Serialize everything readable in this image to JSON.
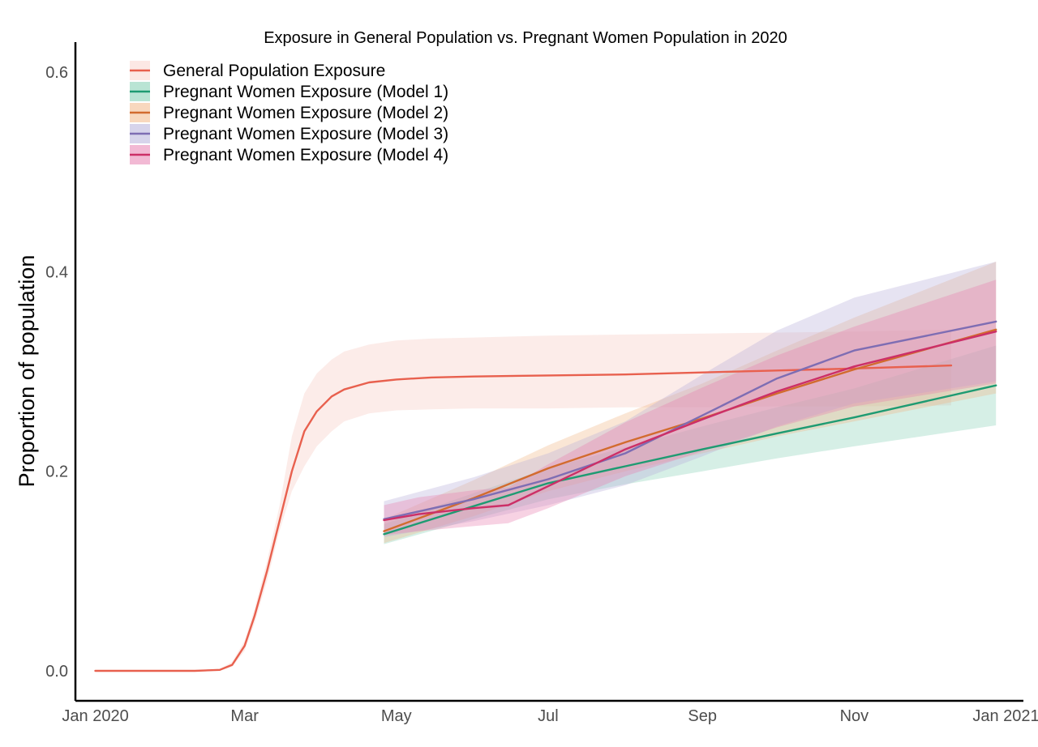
{
  "chart_data": {
    "type": "line",
    "title": "Exposure in General  Population vs. Pregnant Women Population in 2020",
    "xlabel": "",
    "ylabel": "Proportion of population",
    "ylim": [
      0,
      0.62
    ],
    "xlim": [
      "2019-12-24",
      "2021-01-08"
    ],
    "x_ticks": [
      {
        "date": "2020-01-01",
        "label": "Jan 2020"
      },
      {
        "date": "2020-03-01",
        "label": "Mar"
      },
      {
        "date": "2020-05-01",
        "label": "May"
      },
      {
        "date": "2020-07-01",
        "label": "Jul"
      },
      {
        "date": "2020-09-01",
        "label": "Sep"
      },
      {
        "date": "2020-11-01",
        "label": "Nov"
      },
      {
        "date": "2021-01-01",
        "label": "Jan 2021"
      }
    ],
    "y_ticks": [
      0.0,
      0.2,
      0.4,
      0.6
    ],
    "y_tick_labels": [
      "0.0",
      "0.2",
      "0.4",
      "0.6"
    ],
    "grid": false,
    "legend_position": "top-left",
    "series": [
      {
        "name": "General Population Exposure",
        "color": "#E8604E",
        "fill": "#F9D5CE",
        "fill_opacity": 0.45,
        "x": [
          "2020-01-01",
          "2020-02-10",
          "2020-02-20",
          "2020-02-25",
          "2020-03-01",
          "2020-03-05",
          "2020-03-10",
          "2020-03-15",
          "2020-03-20",
          "2020-03-25",
          "2020-03-30",
          "2020-04-05",
          "2020-04-10",
          "2020-04-20",
          "2020-05-01",
          "2020-05-15",
          "2020-06-01",
          "2020-07-01",
          "2020-08-01",
          "2020-09-01",
          "2020-10-01",
          "2020-11-01",
          "2020-12-10"
        ],
        "y": [
          0.0,
          0.0,
          0.001,
          0.006,
          0.025,
          0.055,
          0.1,
          0.15,
          0.2,
          0.24,
          0.26,
          0.275,
          0.282,
          0.289,
          0.292,
          0.294,
          0.295,
          0.296,
          0.297,
          0.299,
          0.301,
          0.303,
          0.306
        ],
        "lower": [
          0.0,
          0.0,
          0.0,
          0.004,
          0.02,
          0.048,
          0.09,
          0.14,
          0.18,
          0.205,
          0.225,
          0.24,
          0.25,
          0.258,
          0.261,
          0.262,
          0.263,
          0.263,
          0.264,
          0.264,
          0.265,
          0.265,
          0.266
        ],
        "upper": [
          0.0,
          0.0,
          0.002,
          0.009,
          0.03,
          0.062,
          0.11,
          0.165,
          0.235,
          0.278,
          0.298,
          0.312,
          0.32,
          0.327,
          0.331,
          0.333,
          0.334,
          0.336,
          0.337,
          0.338,
          0.339,
          0.34,
          0.342
        ]
      },
      {
        "name": "Pregnant Women Exposure (Model 1)",
        "color": "#1E9B72",
        "fill": "#7FCDB0",
        "fill_opacity": 0.32,
        "x": [
          "2020-04-26",
          "2020-06-01",
          "2020-07-01",
          "2020-08-01",
          "2020-09-01",
          "2020-10-01",
          "2020-11-01",
          "2020-12-28"
        ],
        "y": [
          0.137,
          0.165,
          0.188,
          0.205,
          0.222,
          0.238,
          0.254,
          0.286
        ],
        "lower": [
          0.127,
          0.152,
          0.172,
          0.187,
          0.2,
          0.213,
          0.225,
          0.246
        ],
        "upper": [
          0.147,
          0.178,
          0.203,
          0.224,
          0.245,
          0.264,
          0.283,
          0.326
        ]
      },
      {
        "name": "Pregnant Women Exposure (Model 2)",
        "color": "#D26B2E",
        "fill": "#F2B888",
        "fill_opacity": 0.35,
        "x": [
          "2020-04-26",
          "2020-06-01",
          "2020-07-01",
          "2020-08-01",
          "2020-09-01",
          "2020-10-01",
          "2020-11-01",
          "2020-12-28"
        ],
        "y": [
          0.14,
          0.173,
          0.203,
          0.229,
          0.253,
          0.278,
          0.302,
          0.342
        ],
        "lower": [
          0.128,
          0.155,
          0.18,
          0.2,
          0.218,
          0.235,
          0.25,
          0.278
        ],
        "upper": [
          0.152,
          0.191,
          0.226,
          0.258,
          0.288,
          0.321,
          0.354,
          0.41
        ]
      },
      {
        "name": "Pregnant Women Exposure (Model 3)",
        "color": "#7E6DB3",
        "fill": "#B6B0DB",
        "fill_opacity": 0.35,
        "x": [
          "2020-04-26",
          "2020-06-01",
          "2020-07-01",
          "2020-08-01",
          "2020-09-01",
          "2020-10-01",
          "2020-11-01",
          "2020-12-28"
        ],
        "y": [
          0.152,
          0.172,
          0.192,
          0.218,
          0.256,
          0.293,
          0.321,
          0.35
        ],
        "lower": [
          0.134,
          0.15,
          0.166,
          0.186,
          0.215,
          0.245,
          0.268,
          0.29
        ],
        "upper": [
          0.17,
          0.194,
          0.218,
          0.25,
          0.297,
          0.341,
          0.374,
          0.41
        ]
      },
      {
        "name": "Pregnant Women Exposure (Model 4)",
        "color": "#CC2F67",
        "fill": "#E87FB0",
        "fill_opacity": 0.35,
        "x": [
          "2020-04-26",
          "2020-05-10",
          "2020-06-01",
          "2020-06-15",
          "2020-07-01",
          "2020-08-01",
          "2020-09-01",
          "2020-10-01",
          "2020-11-01",
          "2020-12-28"
        ],
        "y": [
          0.151,
          0.157,
          0.163,
          0.166,
          0.185,
          0.222,
          0.252,
          0.28,
          0.305,
          0.34
        ],
        "lower": [
          0.136,
          0.14,
          0.145,
          0.148,
          0.163,
          0.195,
          0.22,
          0.244,
          0.265,
          0.288
        ],
        "upper": [
          0.166,
          0.174,
          0.181,
          0.184,
          0.207,
          0.249,
          0.284,
          0.316,
          0.345,
          0.392
        ]
      }
    ]
  }
}
